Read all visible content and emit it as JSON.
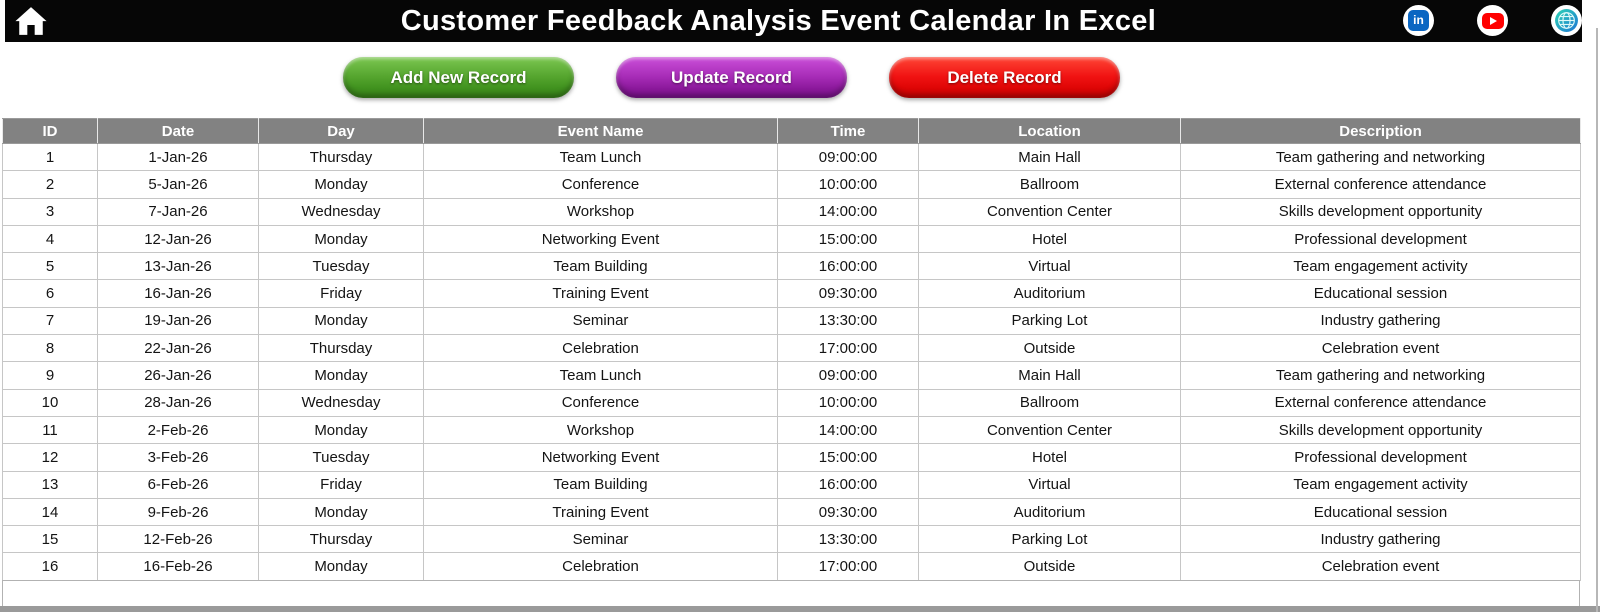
{
  "header": {
    "title": "Customer Feedback Analysis Event Calendar In Excel",
    "bar_color": "#060606",
    "icons": {
      "home": "home-icon",
      "linkedin": {
        "name": "linkedin-icon",
        "glyph": "in",
        "color": "#0a66c2"
      },
      "youtube": {
        "name": "youtube-icon",
        "color": "#ff0000"
      },
      "globe": {
        "name": "globe-icon",
        "color": "#18b8b0"
      }
    }
  },
  "toolbar": {
    "add_label": "Add New Record",
    "update_label": "Update Record",
    "delete_label": "Delete Record",
    "add_color": "#55a52e",
    "update_color": "#a72cb7",
    "delete_color": "#e60c0c"
  },
  "table": {
    "header_color": "#828282",
    "columns": [
      "ID",
      "Date",
      "Day",
      "Event Name",
      "Time",
      "Location",
      "Description"
    ],
    "rows": [
      [
        "1",
        "1-Jan-26",
        "Thursday",
        "Team Lunch",
        "09:00:00",
        "Main Hall",
        "Team gathering and networking"
      ],
      [
        "2",
        "5-Jan-26",
        "Monday",
        "Conference",
        "10:00:00",
        "Ballroom",
        "External conference attendance"
      ],
      [
        "3",
        "7-Jan-26",
        "Wednesday",
        "Workshop",
        "14:00:00",
        "Convention Center",
        "Skills development opportunity"
      ],
      [
        "4",
        "12-Jan-26",
        "Monday",
        "Networking Event",
        "15:00:00",
        "Hotel",
        "Professional development"
      ],
      [
        "5",
        "13-Jan-26",
        "Tuesday",
        "Team Building",
        "16:00:00",
        "Virtual",
        "Team engagement activity"
      ],
      [
        "6",
        "16-Jan-26",
        "Friday",
        "Training Event",
        "09:30:00",
        "Auditorium",
        "Educational session"
      ],
      [
        "7",
        "19-Jan-26",
        "Monday",
        "Seminar",
        "13:30:00",
        "Parking Lot",
        "Industry gathering"
      ],
      [
        "8",
        "22-Jan-26",
        "Thursday",
        "Celebration",
        "17:00:00",
        "Outside",
        "Celebration event"
      ],
      [
        "9",
        "26-Jan-26",
        "Monday",
        "Team Lunch",
        "09:00:00",
        "Main Hall",
        "Team gathering and networking"
      ],
      [
        "10",
        "28-Jan-26",
        "Wednesday",
        "Conference",
        "10:00:00",
        "Ballroom",
        "External conference attendance"
      ],
      [
        "11",
        "2-Feb-26",
        "Monday",
        "Workshop",
        "14:00:00",
        "Convention Center",
        "Skills development opportunity"
      ],
      [
        "12",
        "3-Feb-26",
        "Tuesday",
        "Networking Event",
        "15:00:00",
        "Hotel",
        "Professional development"
      ],
      [
        "13",
        "6-Feb-26",
        "Friday",
        "Team Building",
        "16:00:00",
        "Virtual",
        "Team engagement activity"
      ],
      [
        "14",
        "9-Feb-26",
        "Monday",
        "Training Event",
        "09:30:00",
        "Auditorium",
        "Educational session"
      ],
      [
        "15",
        "12-Feb-26",
        "Thursday",
        "Seminar",
        "13:30:00",
        "Parking Lot",
        "Industry gathering"
      ],
      [
        "16",
        "16-Feb-26",
        "Monday",
        "Celebration",
        "17:00:00",
        "Outside",
        "Celebration event"
      ]
    ]
  }
}
